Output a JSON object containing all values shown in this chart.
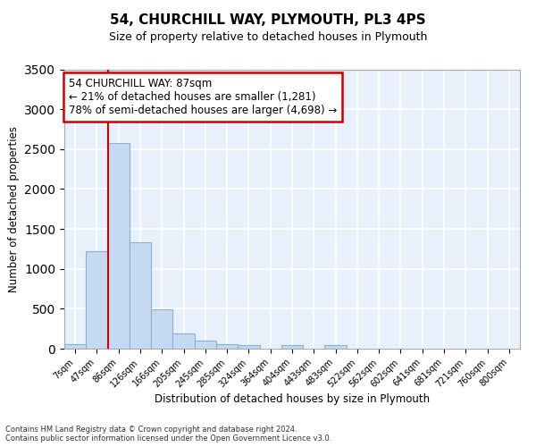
{
  "title": "54, CHURCHILL WAY, PLYMOUTH, PL3 4PS",
  "subtitle": "Size of property relative to detached houses in Plymouth",
  "xlabel": "Distribution of detached houses by size in Plymouth",
  "ylabel": "Number of detached properties",
  "bar_labels": [
    "7sqm",
    "47sqm",
    "86sqm",
    "126sqm",
    "166sqm",
    "205sqm",
    "245sqm",
    "285sqm",
    "324sqm",
    "364sqm",
    "404sqm",
    "443sqm",
    "483sqm",
    "522sqm",
    "562sqm",
    "602sqm",
    "641sqm",
    "681sqm",
    "721sqm",
    "760sqm",
    "800sqm"
  ],
  "bar_values": [
    55,
    1220,
    2580,
    1330,
    490,
    195,
    105,
    55,
    45,
    0,
    45,
    0,
    45,
    0,
    0,
    0,
    0,
    0,
    0,
    0,
    0
  ],
  "bar_color": "#c5d9f1",
  "bar_edge_color": "#8ab0d8",
  "highlight_line_color": "#cc0000",
  "annotation_text": "54 CHURCHILL WAY: 87sqm\n← 21% of detached houses are smaller (1,281)\n78% of semi-detached houses are larger (4,698) →",
  "annotation_box_color": "#cc0000",
  "ylim": [
    0,
    3500
  ],
  "yticks": [
    0,
    500,
    1000,
    1500,
    2000,
    2500,
    3000,
    3500
  ],
  "background_color": "#e8f0fb",
  "grid_color": "#ffffff",
  "title_fontsize": 11,
  "subtitle_fontsize": 9,
  "footer_line1": "Contains HM Land Registry data © Crown copyright and database right 2024.",
  "footer_line2": "Contains public sector information licensed under the Open Government Licence v3.0."
}
